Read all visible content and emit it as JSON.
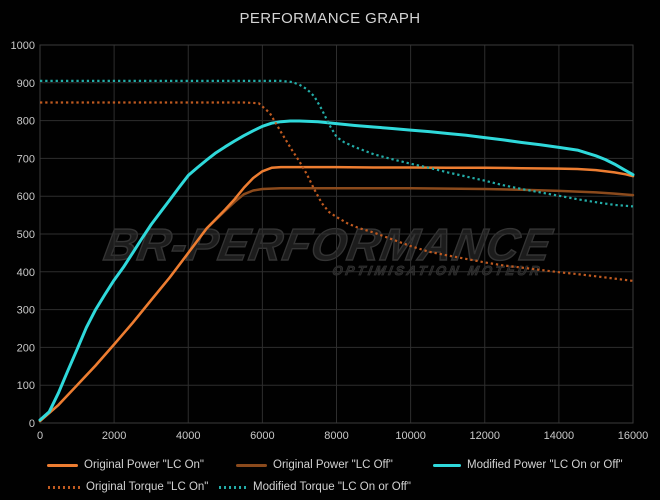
{
  "title": "PERFORMANCE GRAPH",
  "watermark": {
    "main": "BR-Performance",
    "sub": "optimisation moteur"
  },
  "colors": {
    "background": "#010101",
    "grid": "#2e2e2e",
    "plot_border": "#3a3a3a",
    "axis_text": "#c9c9c9",
    "title_text": "#d4d4d4",
    "legend_text": "#d2d2d2",
    "original_power_lc_on": "#ed7d31",
    "original_power_lc_off": "#8b4a1c",
    "modified_power": "#2fd9db",
    "original_torque_lc_on": "#c05a20",
    "modified_torque": "#23ada8"
  },
  "chart_data": {
    "type": "line",
    "title": "PERFORMANCE GRAPH",
    "xlabel": "",
    "ylabel": "",
    "xlim": [
      0,
      16000
    ],
    "ylim": [
      0,
      1000
    ],
    "x_ticks": [
      0,
      2000,
      4000,
      6000,
      8000,
      10000,
      12000,
      14000,
      16000
    ],
    "y_ticks": [
      0,
      100,
      200,
      300,
      400,
      500,
      600,
      700,
      800,
      900,
      1000
    ],
    "grid": true,
    "legend_position": "bottom",
    "series": [
      {
        "id": "original-power-lc-off",
        "name": "Original Power \"LC Off\"",
        "color": "#8b4a1c",
        "style": "solid",
        "points": [
          [
            0,
            5
          ],
          [
            500,
            48
          ],
          [
            1000,
            100
          ],
          [
            1500,
            152
          ],
          [
            2000,
            208
          ],
          [
            2500,
            265
          ],
          [
            3000,
            325
          ],
          [
            3500,
            385
          ],
          [
            4000,
            450
          ],
          [
            4500,
            515
          ],
          [
            5000,
            562
          ],
          [
            5250,
            585
          ],
          [
            5500,
            605
          ],
          [
            5750,
            615
          ],
          [
            6000,
            619
          ],
          [
            6500,
            621
          ],
          [
            7000,
            621
          ],
          [
            8000,
            621
          ],
          [
            9000,
            621
          ],
          [
            10000,
            621
          ],
          [
            11000,
            620
          ],
          [
            12000,
            619
          ],
          [
            13000,
            617
          ],
          [
            14000,
            614
          ],
          [
            15000,
            610
          ],
          [
            15500,
            607
          ],
          [
            16000,
            603
          ]
        ]
      },
      {
        "id": "original-power-lc-on",
        "name": "Original Power \"LC On\"",
        "color": "#ed7d31",
        "style": "solid",
        "points": [
          [
            0,
            5
          ],
          [
            500,
            48
          ],
          [
            1000,
            100
          ],
          [
            1500,
            152
          ],
          [
            2000,
            208
          ],
          [
            2500,
            265
          ],
          [
            3000,
            325
          ],
          [
            3500,
            385
          ],
          [
            4000,
            450
          ],
          [
            4500,
            515
          ],
          [
            5000,
            565
          ],
          [
            5250,
            592
          ],
          [
            5500,
            622
          ],
          [
            5750,
            648
          ],
          [
            6000,
            666
          ],
          [
            6250,
            675
          ],
          [
            6500,
            677
          ],
          [
            7000,
            677
          ],
          [
            8000,
            677
          ],
          [
            9000,
            676
          ],
          [
            10000,
            676
          ],
          [
            11000,
            675
          ],
          [
            12000,
            675
          ],
          [
            13000,
            674
          ],
          [
            14000,
            673
          ],
          [
            14500,
            672
          ],
          [
            15000,
            669
          ],
          [
            15500,
            663
          ],
          [
            15800,
            658
          ],
          [
            16000,
            653
          ]
        ]
      },
      {
        "id": "modified-power",
        "name": "Modified Power \"LC On or Off\"",
        "color": "#2fd9db",
        "style": "solid",
        "points": [
          [
            0,
            8
          ],
          [
            250,
            30
          ],
          [
            500,
            80
          ],
          [
            750,
            138
          ],
          [
            1000,
            195
          ],
          [
            1250,
            252
          ],
          [
            1500,
            300
          ],
          [
            1750,
            340
          ],
          [
            2000,
            378
          ],
          [
            2250,
            412
          ],
          [
            2500,
            450
          ],
          [
            2750,
            488
          ],
          [
            3000,
            525
          ],
          [
            3250,
            558
          ],
          [
            3500,
            590
          ],
          [
            3750,
            623
          ],
          [
            4000,
            655
          ],
          [
            4250,
            676
          ],
          [
            4500,
            696
          ],
          [
            4750,
            715
          ],
          [
            5000,
            731
          ],
          [
            5250,
            746
          ],
          [
            5500,
            760
          ],
          [
            5750,
            773
          ],
          [
            6000,
            785
          ],
          [
            6250,
            793
          ],
          [
            6500,
            797
          ],
          [
            6750,
            799
          ],
          [
            7000,
            799
          ],
          [
            7500,
            797
          ],
          [
            8000,
            792
          ],
          [
            8500,
            787
          ],
          [
            9000,
            783
          ],
          [
            9500,
            779
          ],
          [
            10000,
            775
          ],
          [
            10500,
            771
          ],
          [
            11000,
            766
          ],
          [
            11500,
            761
          ],
          [
            12000,
            755
          ],
          [
            12500,
            749
          ],
          [
            13000,
            742
          ],
          [
            13500,
            736
          ],
          [
            14000,
            729
          ],
          [
            14500,
            722
          ],
          [
            15000,
            707
          ],
          [
            15250,
            697
          ],
          [
            15500,
            685
          ],
          [
            15750,
            671
          ],
          [
            16000,
            657
          ]
        ]
      },
      {
        "id": "original-torque-lc-on",
        "name": "Original Torque \"LC On\"",
        "color": "#c05a20",
        "style": "dotted",
        "points": [
          [
            0,
            848
          ],
          [
            1000,
            848
          ],
          [
            2000,
            848
          ],
          [
            3000,
            848
          ],
          [
            4000,
            848
          ],
          [
            5000,
            848
          ],
          [
            5500,
            848
          ],
          [
            5900,
            846
          ],
          [
            6200,
            820
          ],
          [
            6500,
            770
          ],
          [
            6800,
            722
          ],
          [
            7000,
            692
          ],
          [
            7200,
            658
          ],
          [
            7400,
            618
          ],
          [
            7600,
            582
          ],
          [
            7800,
            558
          ],
          [
            8000,
            545
          ],
          [
            8300,
            528
          ],
          [
            8600,
            516
          ],
          [
            9000,
            504
          ],
          [
            9500,
            486
          ],
          [
            10000,
            468
          ],
          [
            10500,
            453
          ],
          [
            11000,
            443
          ],
          [
            11500,
            434
          ],
          [
            12000,
            425
          ],
          [
            12500,
            417
          ],
          [
            13000,
            411
          ],
          [
            13500,
            405
          ],
          [
            14000,
            399
          ],
          [
            14500,
            394
          ],
          [
            15000,
            388
          ],
          [
            15500,
            382
          ],
          [
            16000,
            376
          ]
        ]
      },
      {
        "id": "modified-torque",
        "name": "Modified Torque \"LC On or Off\"",
        "color": "#23ada8",
        "style": "dotted",
        "points": [
          [
            0,
            905
          ],
          [
            1000,
            905
          ],
          [
            2000,
            905
          ],
          [
            3000,
            905
          ],
          [
            4000,
            905
          ],
          [
            5000,
            905
          ],
          [
            6000,
            905
          ],
          [
            6500,
            905
          ],
          [
            6800,
            902
          ],
          [
            7000,
            895
          ],
          [
            7200,
            883
          ],
          [
            7400,
            864
          ],
          [
            7600,
            830
          ],
          [
            7800,
            790
          ],
          [
            8000,
            757
          ],
          [
            8200,
            743
          ],
          [
            8500,
            730
          ],
          [
            9000,
            711
          ],
          [
            9500,
            698
          ],
          [
            10000,
            686
          ],
          [
            10500,
            675
          ],
          [
            11000,
            663
          ],
          [
            11500,
            652
          ],
          [
            12000,
            641
          ],
          [
            12500,
            629
          ],
          [
            13000,
            619
          ],
          [
            13500,
            610
          ],
          [
            14000,
            601
          ],
          [
            14500,
            592
          ],
          [
            15000,
            584
          ],
          [
            15500,
            577
          ],
          [
            16000,
            573
          ]
        ]
      }
    ],
    "legend_rows": [
      {
        "entries": [
          "original-power-lc-on",
          "original-power-lc-off",
          "modified-power"
        ]
      },
      {
        "entries": [
          "original-torque-lc-on",
          "modified-torque"
        ]
      }
    ]
  }
}
